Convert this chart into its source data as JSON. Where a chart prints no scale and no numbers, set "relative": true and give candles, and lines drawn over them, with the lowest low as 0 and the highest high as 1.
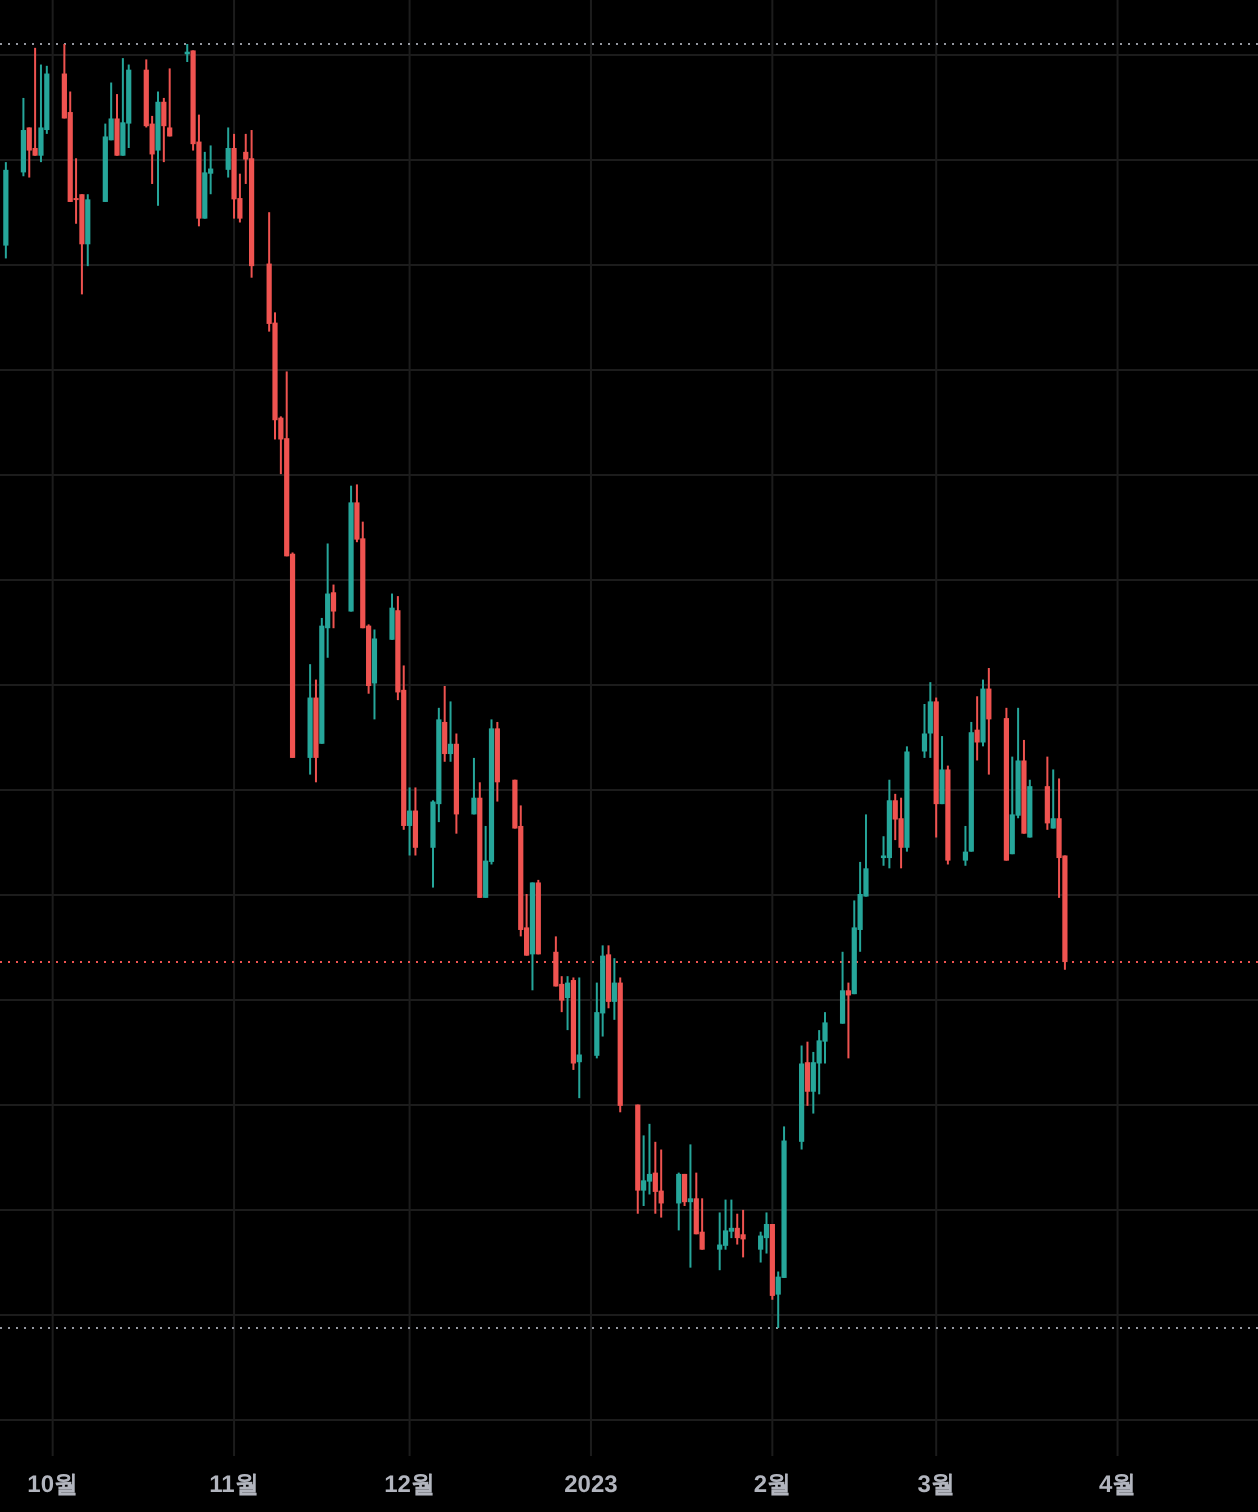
{
  "chart_data": {
    "type": "candlestick",
    "relative": true,
    "grid": true,
    "xlim": [
      "2022-09-22",
      "2023-04-25"
    ],
    "xticks": [
      {
        "value": "2022-10-01",
        "label": "10월"
      },
      {
        "value": "2022-11-01",
        "label": "11월"
      },
      {
        "value": "2022-12-01",
        "label": "12월"
      },
      {
        "value": "2023-01-01",
        "label": "2023"
      },
      {
        "value": "2023-02-01",
        "label": "2월"
      },
      {
        "value": "2023-03-01",
        "label": "3월"
      },
      {
        "value": "2023-04-01",
        "label": "4월"
      }
    ],
    "ref_lines": [
      {
        "axis": "y",
        "value": 1,
        "color": "#9598a1",
        "line_style": "dotted"
      },
      {
        "axis": "y",
        "value": 0,
        "color": "#9598a1",
        "line_style": "dotted"
      },
      {
        "axis": "y",
        "value": 0.285,
        "color": "#ef5350",
        "line_style": "dotted"
      }
    ],
    "x": [
      "2022-09-23",
      "2022-09-26",
      "2022-09-27",
      "2022-09-28",
      "2022-09-29",
      "2022-09-30",
      "2022-10-03",
      "2022-10-04",
      "2022-10-05",
      "2022-10-06",
      "2022-10-07",
      "2022-10-10",
      "2022-10-11",
      "2022-10-12",
      "2022-10-13",
      "2022-10-14",
      "2022-10-17",
      "2022-10-18",
      "2022-10-19",
      "2022-10-20",
      "2022-10-21",
      "2022-10-24",
      "2022-10-25",
      "2022-10-26",
      "2022-10-27",
      "2022-10-28",
      "2022-10-31",
      "2022-11-01",
      "2022-11-02",
      "2022-11-03",
      "2022-11-04",
      "2022-11-07",
      "2022-11-08",
      "2022-11-09",
      "2022-11-10",
      "2022-11-11",
      "2022-11-14",
      "2022-11-15",
      "2022-11-16",
      "2022-11-17",
      "2022-11-18",
      "2022-11-21",
      "2022-11-22",
      "2022-11-23",
      "2022-11-24",
      "2022-11-25",
      "2022-11-28",
      "2022-11-29",
      "2022-11-30",
      "2022-12-01",
      "2022-12-02",
      "2022-12-05",
      "2022-12-06",
      "2022-12-07",
      "2022-12-08",
      "2022-12-09",
      "2022-12-12",
      "2022-12-13",
      "2022-12-14",
      "2022-12-15",
      "2022-12-16",
      "2022-12-19",
      "2022-12-20",
      "2022-12-21",
      "2022-12-22",
      "2022-12-23",
      "2022-12-26",
      "2022-12-27",
      "2022-12-28",
      "2022-12-29",
      "2022-12-30",
      "2023-01-02",
      "2023-01-03",
      "2023-01-04",
      "2023-01-05",
      "2023-01-06",
      "2023-01-09",
      "2023-01-10",
      "2023-01-11",
      "2023-01-12",
      "2023-01-13",
      "2023-01-16",
      "2023-01-17",
      "2023-01-18",
      "2023-01-19",
      "2023-01-20",
      "2023-01-23",
      "2023-01-24",
      "2023-01-25",
      "2023-01-26",
      "2023-01-27",
      "2023-01-30",
      "2023-01-31",
      "2023-02-01",
      "2023-02-02",
      "2023-02-03",
      "2023-02-06",
      "2023-02-07",
      "2023-02-08",
      "2023-02-09",
      "2023-02-10",
      "2023-02-13",
      "2023-02-14",
      "2023-02-15",
      "2023-02-16",
      "2023-02-17",
      "2023-02-20",
      "2023-02-21",
      "2023-02-22",
      "2023-02-23",
      "2023-02-24",
      "2023-02-27",
      "2023-02-28",
      "2023-03-01",
      "2023-03-02",
      "2023-03-03",
      "2023-03-06",
      "2023-03-07",
      "2023-03-08",
      "2023-03-09",
      "2023-03-10",
      "2023-03-13",
      "2023-03-14",
      "2023-03-15",
      "2023-03-16",
      "2023-03-17",
      "2023-03-20",
      "2023-03-21",
      "2023-03-22",
      "2023-03-23"
    ],
    "ohlc": [
      [
        0.843,
        0.908,
        0.833,
        0.902
      ],
      [
        0.9,
        0.958,
        0.897,
        0.933
      ],
      [
        0.935,
        0.935,
        0.896,
        0.917
      ],
      [
        0.919,
        0.997,
        0.913,
        0.913
      ],
      [
        0.913,
        0.984,
        0.908,
        0.935
      ],
      [
        0.933,
        0.983,
        0.93,
        0.977
      ],
      [
        0.977,
        1,
        0.942,
        0.942
      ],
      [
        0.947,
        0.963,
        0.877,
        0.877
      ],
      [
        0.88,
        0.911,
        0.86,
        0.879
      ],
      [
        0.883,
        0.883,
        0.805,
        0.844
      ],
      [
        0.844,
        0.883,
        0.827,
        0.879
      ],
      [
        0.877,
        0.938,
        0.877,
        0.928
      ],
      [
        0.925,
        0.97,
        0.925,
        0.942
      ],
      [
        0.942,
        0.961,
        0.913,
        0.913
      ],
      [
        0.913,
        0.989,
        0.913,
        0.939
      ],
      [
        0.938,
        0.984,
        0.919,
        0.98
      ],
      [
        0.98,
        0.988,
        0.935,
        0.936
      ],
      [
        0.938,
        0.944,
        0.891,
        0.914
      ],
      [
        0.917,
        0.963,
        0.874,
        0.955
      ],
      [
        0.955,
        0.958,
        0.908,
        0.936
      ],
      [
        0.935,
        0.981,
        0.928,
        0.928
      ],
      [
        0.992,
        1,
        0.986,
        0.994
      ],
      [
        0.995,
        0.995,
        0.917,
        0.922
      ],
      [
        0.924,
        0.945,
        0.858,
        0.864
      ],
      [
        0.864,
        0.916,
        0.864,
        0.9
      ],
      [
        0.899,
        0.921,
        0.883,
        0.903
      ],
      [
        0.902,
        0.935,
        0.896,
        0.919
      ],
      [
        0.919,
        0.93,
        0.864,
        0.879
      ],
      [
        0.88,
        0.899,
        0.861,
        0.864
      ],
      [
        0.916,
        0.93,
        0.891,
        0.91
      ],
      [
        0.911,
        0.933,
        0.818,
        0.827
      ],
      [
        0.829,
        0.869,
        0.776,
        0.782
      ],
      [
        0.783,
        0.791,
        0.692,
        0.707
      ],
      [
        0.709,
        0.71,
        0.665,
        0.692
      ],
      [
        0.693,
        0.745,
        0.601,
        0.601
      ],
      [
        0.603,
        0.604,
        0.444,
        0.444
      ],
      [
        0.444,
        0.517,
        0.431,
        0.491
      ],
      [
        0.491,
        0.505,
        0.425,
        0.444
      ],
      [
        0.455,
        0.553,
        0.455,
        0.547
      ],
      [
        0.545,
        0.611,
        0.522,
        0.572
      ],
      [
        0.573,
        0.579,
        0.545,
        0.558
      ],
      [
        0.558,
        0.656,
        0.558,
        0.643
      ],
      [
        0.643,
        0.657,
        0.612,
        0.614
      ],
      [
        0.615,
        0.628,
        0.545,
        0.545
      ],
      [
        0.547,
        0.548,
        0.494,
        0.5
      ],
      [
        0.502,
        0.544,
        0.474,
        0.537
      ],
      [
        0.536,
        0.572,
        0.536,
        0.561
      ],
      [
        0.559,
        0.57,
        0.489,
        0.495
      ],
      [
        0.497,
        0.516,
        0.388,
        0.391
      ],
      [
        0.391,
        0.421,
        0.368,
        0.403
      ],
      [
        0.403,
        0.421,
        0.368,
        0.374
      ],
      [
        0.374,
        0.411,
        0.343,
        0.41
      ],
      [
        0.408,
        0.483,
        0.394,
        0.474
      ],
      [
        0.472,
        0.5,
        0.441,
        0.447
      ],
      [
        0.447,
        0.488,
        0.441,
        0.455
      ],
      [
        0.455,
        0.463,
        0.385,
        0.4
      ],
      [
        0.4,
        0.444,
        0.4,
        0.413
      ],
      [
        0.413,
        0.425,
        0.335,
        0.335
      ],
      [
        0.335,
        0.391,
        0.335,
        0.364
      ],
      [
        0.363,
        0.474,
        0.361,
        0.467
      ],
      [
        0.467,
        0.472,
        0.41,
        0.425
      ],
      [
        0.427,
        0.427,
        0.389,
        0.389
      ],
      [
        0.391,
        0.407,
        0.305,
        0.31
      ],
      [
        0.312,
        0.338,
        0.29,
        0.29
      ],
      [
        0.291,
        0.347,
        0.263,
        0.347
      ],
      [
        0.347,
        0.349,
        0.291,
        0.291
      ],
      [
        0.293,
        0.305,
        0.266,
        0.266
      ],
      [
        0.268,
        0.274,
        0.246,
        0.255
      ],
      [
        0.257,
        0.274,
        0.232,
        0.269
      ],
      [
        0.271,
        0.273,
        0.201,
        0.206
      ],
      [
        0.207,
        0.273,
        0.179,
        0.213
      ],
      [
        0.212,
        0.269,
        0.21,
        0.246
      ],
      [
        0.245,
        0.298,
        0.227,
        0.29
      ],
      [
        0.291,
        0.298,
        0.249,
        0.254
      ],
      [
        0.254,
        0.288,
        0.24,
        0.269
      ],
      [
        0.269,
        0.273,
        0.168,
        0.173
      ],
      [
        0.174,
        0.174,
        0.089,
        0.107
      ],
      [
        0.107,
        0.15,
        0.095,
        0.115
      ],
      [
        0.114,
        0.159,
        0.104,
        0.12
      ],
      [
        0.121,
        0.145,
        0.089,
        0.106
      ],
      [
        0.107,
        0.139,
        0.086,
        0.097
      ],
      [
        0.097,
        0.121,
        0.076,
        0.12
      ],
      [
        0.12,
        0.12,
        0.095,
        0.098
      ],
      [
        0.098,
        0.143,
        0.047,
        0.101
      ],
      [
        0.101,
        0.121,
        0.073,
        0.073
      ],
      [
        0.075,
        0.101,
        0.061,
        0.061
      ],
      [
        0.061,
        0.09,
        0.045,
        0.065
      ],
      [
        0.064,
        0.1,
        0.061,
        0.076
      ],
      [
        0.075,
        0.1,
        0.07,
        0.078
      ],
      [
        0.078,
        0.089,
        0.065,
        0.07
      ],
      [
        0.073,
        0.092,
        0.055,
        0.069
      ],
      [
        0.061,
        0.075,
        0.051,
        0.072
      ],
      [
        0.07,
        0.09,
        0.058,
        0.081
      ],
      [
        0.081,
        0.081,
        0.022,
        0.025
      ],
      [
        0.026,
        0.044,
        0,
        0.04
      ],
      [
        0.039,
        0.157,
        0.039,
        0.146
      ],
      [
        0.145,
        0.22,
        0.139,
        0.206
      ],
      [
        0.207,
        0.223,
        0.173,
        0.184
      ],
      [
        0.184,
        0.215,
        0.167,
        0.207
      ],
      [
        0.206,
        0.232,
        0.182,
        0.224
      ],
      [
        0.223,
        0.246,
        0.206,
        0.238
      ],
      [
        0.237,
        0.293,
        0.237,
        0.263
      ],
      [
        0.263,
        0.269,
        0.21,
        0.259
      ],
      [
        0.26,
        0.333,
        0.26,
        0.312
      ],
      [
        0.31,
        0.363,
        0.293,
        0.338
      ],
      [
        0.336,
        0.4,
        0.336,
        0.358
      ],
      [
        0.366,
        0.383,
        0.36,
        0.368
      ],
      [
        0.366,
        0.427,
        0.358,
        0.411
      ],
      [
        0.411,
        0.416,
        0.38,
        0.396
      ],
      [
        0.397,
        0.413,
        0.358,
        0.374
      ],
      [
        0.374,
        0.453,
        0.371,
        0.449
      ],
      [
        0.449,
        0.486,
        0.444,
        0.463
      ],
      [
        0.463,
        0.503,
        0.444,
        0.488
      ],
      [
        0.488,
        0.491,
        0.382,
        0.408
      ],
      [
        0.408,
        0.461,
        0.408,
        0.435
      ],
      [
        0.435,
        0.438,
        0.361,
        0.364
      ],
      [
        0.364,
        0.391,
        0.36,
        0.371
      ],
      [
        0.371,
        0.472,
        0.371,
        0.464
      ],
      [
        0.466,
        0.492,
        0.442,
        0.456
      ],
      [
        0.456,
        0.505,
        0.453,
        0.498
      ],
      [
        0.498,
        0.514,
        0.431,
        0.474
      ],
      [
        0.475,
        0.483,
        0.364,
        0.364
      ],
      [
        0.369,
        0.445,
        0.369,
        0.4
      ],
      [
        0.399,
        0.483,
        0.397,
        0.442
      ],
      [
        0.442,
        0.458,
        0.385,
        0.385
      ],
      [
        0.382,
        0.427,
        0.382,
        0.422
      ],
      [
        0.422,
        0.445,
        0.388,
        0.393
      ],
      [
        0.389,
        0.435,
        0.389,
        0.397
      ],
      [
        0.397,
        0.428,
        0.335,
        0.366
      ],
      [
        0.368,
        0.368,
        0.279,
        0.285
      ]
    ]
  }
}
